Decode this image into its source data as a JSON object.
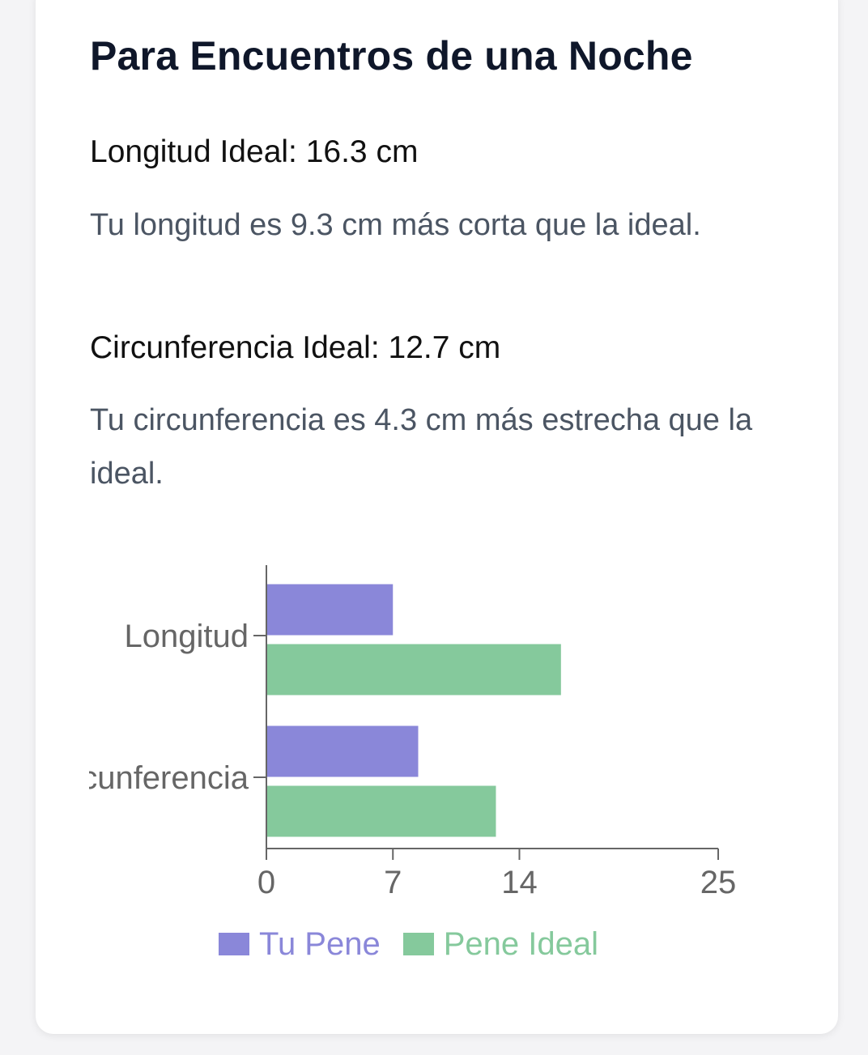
{
  "header": {
    "title": "Para Encuentros de una Noche"
  },
  "length": {
    "heading": "Longitud Ideal: 16.3 cm",
    "message": "Tu longitud es 9.3 cm más corta que la ideal."
  },
  "girth": {
    "heading": "Circunferencia Ideal: 12.7 cm",
    "message": "Tu circunferencia es 4.3 cm más estrecha que la ideal."
  },
  "colors": {
    "text_dark": "#0f172a",
    "text_muted": "#4b5563",
    "axis": "#666666",
    "series_user": "#8a87d9",
    "series_ideal": "#85c99c"
  },
  "chart_data": {
    "type": "bar",
    "orientation": "horizontal",
    "categories": [
      "Longitud",
      "Circunferencia"
    ],
    "series": [
      {
        "name": "Tu Pene",
        "values": [
          7,
          8.4
        ],
        "color": "#8a87d9"
      },
      {
        "name": "Pene Ideal",
        "values": [
          16.3,
          12.7
        ],
        "color": "#85c99c"
      }
    ],
    "xticks": [
      0,
      7,
      14,
      25
    ],
    "xlim": [
      0,
      25
    ],
    "legend": "bottom",
    "grid": false
  }
}
